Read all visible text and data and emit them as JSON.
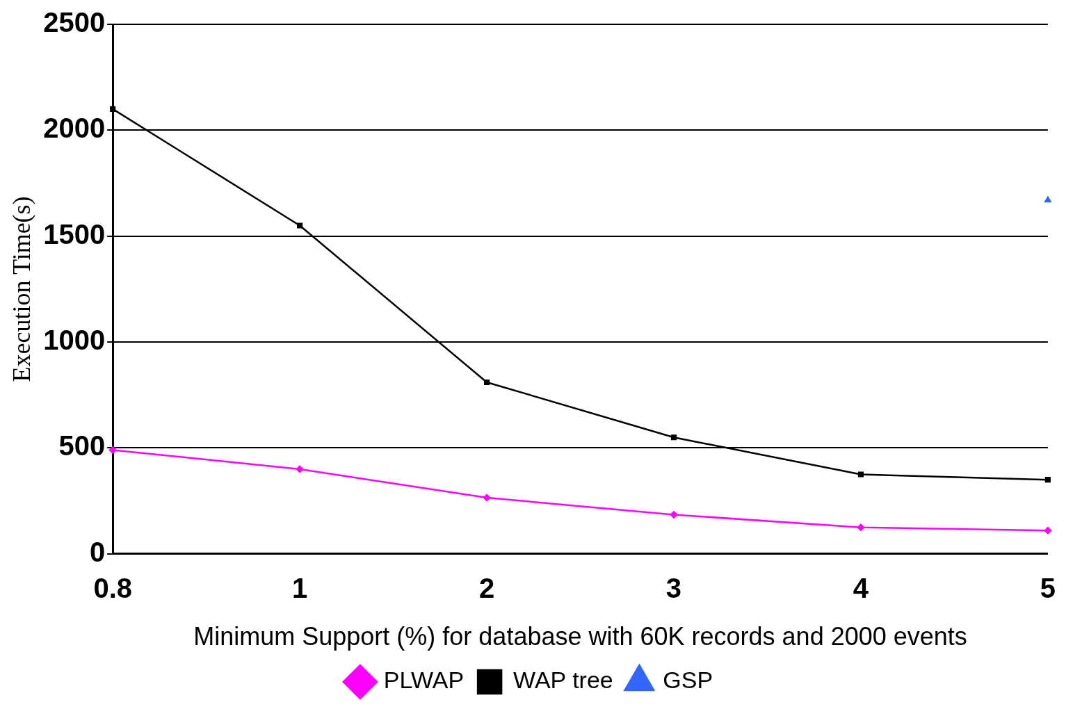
{
  "chart_data": {
    "type": "line",
    "xlabel": "Minimum Support (%) for database with 60K records and 2000 events",
    "ylabel": "Execution Time(s)",
    "categories": [
      "0.8",
      "1",
      "2",
      "3",
      "4",
      "5"
    ],
    "series": [
      {
        "name": "PLWAP",
        "color": "#ff00ff",
        "marker": "diamond",
        "values": [
          490,
          400,
          265,
          185,
          125,
          110
        ]
      },
      {
        "name": "WAP tree",
        "color": "#000000",
        "marker": "square",
        "values": [
          2100,
          1550,
          810,
          550,
          375,
          350
        ]
      },
      {
        "name": "GSP",
        "color": "#3366ff",
        "marker": "triangle",
        "values": [
          null,
          null,
          null,
          null,
          null,
          1670
        ]
      }
    ],
    "ylim": [
      0,
      2500
    ],
    "yticks": [
      0,
      500,
      1000,
      1500,
      2000,
      2500
    ],
    "grid": "y",
    "legend": "bottom",
    "line_style": "solid"
  }
}
